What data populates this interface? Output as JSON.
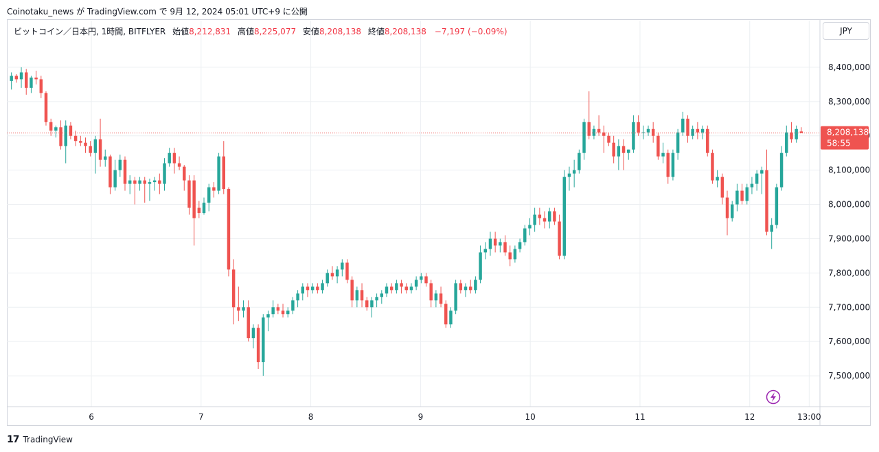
{
  "header": {
    "caption": "Coinotaku_news が TradingView.com で 9月 12, 2024 05:01 UTC+9 に公開"
  },
  "legend": {
    "symbol": "ビットコイン／日本円, 1時間, BITFLYER",
    "open_label": "始値",
    "open": "8,212,831",
    "high_label": "高値",
    "high": "8,225,077",
    "low_label": "安値",
    "low": "8,208,138",
    "close_label": "終値",
    "close": "8,208,138",
    "change": "−7,197 (−0.09%)"
  },
  "currency": "JPY",
  "price_tag": {
    "price": "8,208,138",
    "countdown": "58:55"
  },
  "footer": {
    "brand": "TradingView",
    "logo": "17"
  },
  "colors": {
    "up": "#26a69a",
    "down": "#ef5350",
    "grid": "#eceff2",
    "price_line": "#ef5350"
  },
  "icons": {
    "flash": "lightning-bolt-icon"
  },
  "chart_data": {
    "type": "candlestick",
    "title": "ビットコイン／日本円, 1時間, BITFLYER",
    "ylim": [
      7410000,
      8480000
    ],
    "xlim": [
      5.23,
      12.64
    ],
    "x_unit": "day of September 2024 (fractional, 1h candles)",
    "y_ticks": [
      7500000,
      7600000,
      7700000,
      7800000,
      7900000,
      8000000,
      8100000,
      8200000,
      8300000,
      8400000
    ],
    "y_tick_labels": [
      "7,500,000",
      "7,600,000",
      "7,700,000",
      "7,800,000",
      "7,900,000",
      "8,000,000",
      "8,100,000",
      "8,200,000",
      "8,300,000",
      "8,400,000"
    ],
    "x_ticks": [
      6,
      7,
      8,
      9,
      10,
      11,
      12,
      12.542
    ],
    "x_tick_labels": [
      "6",
      "7",
      "8",
      "9",
      "10",
      "11",
      "12",
      "13:00"
    ],
    "last_price": 8208138,
    "ohlc": [
      [
        8360000,
        8385000,
        8335000,
        8375000
      ],
      [
        8375000,
        8380000,
        8355000,
        8365000
      ],
      [
        8365000,
        8400000,
        8340000,
        8385000
      ],
      [
        8385000,
        8395000,
        8320000,
        8340000
      ],
      [
        8340000,
        8375000,
        8325000,
        8370000
      ],
      [
        8370000,
        8390000,
        8350000,
        8365000
      ],
      [
        8365000,
        8375000,
        8310000,
        8325000
      ],
      [
        8325000,
        8330000,
        8230000,
        8240000
      ],
      [
        8240000,
        8250000,
        8200000,
        8215000
      ],
      [
        8215000,
        8230000,
        8195000,
        8225000
      ],
      [
        8225000,
        8245000,
        8160000,
        8170000
      ],
      [
        8170000,
        8245000,
        8120000,
        8230000
      ],
      [
        8230000,
        8240000,
        8190000,
        8200000
      ],
      [
        8200000,
        8215000,
        8170000,
        8185000
      ],
      [
        8185000,
        8200000,
        8170000,
        8180000
      ],
      [
        8180000,
        8195000,
        8150000,
        8170000
      ],
      [
        8170000,
        8185000,
        8140000,
        8150000
      ],
      [
        8150000,
        8200000,
        8090000,
        8190000
      ],
      [
        8190000,
        8250000,
        8110000,
        8130000
      ],
      [
        8130000,
        8160000,
        8110000,
        8140000
      ],
      [
        8140000,
        8145000,
        8030000,
        8050000
      ],
      [
        8050000,
        8130000,
        8040000,
        8100000
      ],
      [
        8100000,
        8145000,
        8080000,
        8130000
      ],
      [
        8130000,
        8140000,
        8040000,
        8060000
      ],
      [
        8060000,
        8085000,
        8030000,
        8070000
      ],
      [
        8070000,
        8080000,
        8000000,
        8060000
      ],
      [
        8060000,
        8080000,
        8040000,
        8070000
      ],
      [
        8070000,
        8080000,
        8005000,
        8060000
      ],
      [
        8060000,
        8075000,
        8010000,
        8065000
      ],
      [
        8065000,
        8080000,
        8040000,
        8070000
      ],
      [
        8070000,
        8090000,
        8030000,
        8060000
      ],
      [
        8060000,
        8135000,
        8040000,
        8120000
      ],
      [
        8120000,
        8165000,
        8110000,
        8150000
      ],
      [
        8150000,
        8165000,
        8090000,
        8120000
      ],
      [
        8120000,
        8140000,
        8100000,
        8110000
      ],
      [
        8110000,
        8115000,
        8040000,
        8070000
      ],
      [
        8070000,
        8085000,
        7970000,
        7990000
      ],
      [
        8070000,
        8085000,
        7880000,
        7960000
      ],
      [
        7990000,
        8010000,
        7960000,
        7975000
      ],
      [
        7975000,
        8020000,
        7970000,
        8005000
      ],
      [
        8005000,
        8060000,
        7980000,
        8050000
      ],
      [
        8050000,
        8065000,
        8020000,
        8040000
      ],
      [
        8040000,
        8150000,
        8030000,
        8140000
      ],
      [
        8140000,
        8185000,
        8030000,
        8045000
      ],
      [
        8045000,
        8050000,
        7790000,
        7810000
      ],
      [
        7810000,
        7840000,
        7650000,
        7700000
      ],
      [
        7700000,
        7760000,
        7660000,
        7690000
      ],
      [
        7690000,
        7720000,
        7670000,
        7700000
      ],
      [
        7700000,
        7720000,
        7600000,
        7610000
      ],
      [
        7610000,
        7650000,
        7580000,
        7640000
      ],
      [
        7640000,
        7650000,
        7520000,
        7540000
      ],
      [
        7540000,
        7680000,
        7500000,
        7670000
      ],
      [
        7670000,
        7690000,
        7630000,
        7680000
      ],
      [
        7680000,
        7720000,
        7670000,
        7700000
      ],
      [
        7700000,
        7710000,
        7680000,
        7690000
      ],
      [
        7690000,
        7710000,
        7670000,
        7680000
      ],
      [
        7680000,
        7700000,
        7670000,
        7690000
      ],
      [
        7690000,
        7730000,
        7680000,
        7720000
      ],
      [
        7720000,
        7750000,
        7700000,
        7740000
      ],
      [
        7740000,
        7770000,
        7720000,
        7760000
      ],
      [
        7760000,
        7770000,
        7730000,
        7750000
      ],
      [
        7750000,
        7770000,
        7740000,
        7760000
      ],
      [
        7760000,
        7770000,
        7740000,
        7750000
      ],
      [
        7750000,
        7780000,
        7740000,
        7770000
      ],
      [
        7770000,
        7810000,
        7760000,
        7800000
      ],
      [
        7800000,
        7820000,
        7780000,
        7790000
      ],
      [
        7790000,
        7820000,
        7770000,
        7810000
      ],
      [
        7810000,
        7840000,
        7790000,
        7830000
      ],
      [
        7830000,
        7840000,
        7770000,
        7780000
      ],
      [
        7780000,
        7790000,
        7700000,
        7720000
      ],
      [
        7720000,
        7760000,
        7700000,
        7750000
      ],
      [
        7750000,
        7770000,
        7700000,
        7720000
      ],
      [
        7720000,
        7730000,
        7690000,
        7700000
      ],
      [
        7700000,
        7730000,
        7670000,
        7720000
      ],
      [
        7720000,
        7740000,
        7700000,
        7730000
      ],
      [
        7730000,
        7750000,
        7710000,
        7740000
      ],
      [
        7740000,
        7770000,
        7730000,
        7760000
      ],
      [
        7760000,
        7770000,
        7740000,
        7750000
      ],
      [
        7750000,
        7780000,
        7740000,
        7770000
      ],
      [
        7770000,
        7780000,
        7740000,
        7760000
      ],
      [
        7760000,
        7770000,
        7740000,
        7750000
      ],
      [
        7750000,
        7770000,
        7740000,
        7760000
      ],
      [
        7760000,
        7790000,
        7750000,
        7780000
      ],
      [
        7780000,
        7800000,
        7770000,
        7790000
      ],
      [
        7790000,
        7800000,
        7760000,
        7770000
      ],
      [
        7770000,
        7780000,
        7700000,
        7720000
      ],
      [
        7720000,
        7750000,
        7700000,
        7740000
      ],
      [
        7740000,
        7760000,
        7700000,
        7710000
      ],
      [
        7710000,
        7720000,
        7640000,
        7650000
      ],
      [
        7650000,
        7700000,
        7640000,
        7690000
      ],
      [
        7690000,
        7780000,
        7680000,
        7770000
      ],
      [
        7770000,
        7780000,
        7740000,
        7750000
      ],
      [
        7750000,
        7770000,
        7730000,
        7760000
      ],
      [
        7760000,
        7780000,
        7740000,
        7750000
      ],
      [
        7750000,
        7790000,
        7740000,
        7780000
      ],
      [
        7780000,
        7880000,
        7770000,
        7860000
      ],
      [
        7860000,
        7890000,
        7840000,
        7870000
      ],
      [
        7870000,
        7920000,
        7850000,
        7900000
      ],
      [
        7900000,
        7920000,
        7860000,
        7880000
      ],
      [
        7880000,
        7900000,
        7860000,
        7890000
      ],
      [
        7890000,
        7910000,
        7850000,
        7860000
      ],
      [
        7860000,
        7880000,
        7820000,
        7840000
      ],
      [
        7840000,
        7880000,
        7830000,
        7870000
      ],
      [
        7870000,
        7900000,
        7860000,
        7890000
      ],
      [
        7890000,
        7940000,
        7880000,
        7930000
      ],
      [
        7930000,
        7960000,
        7910000,
        7940000
      ],
      [
        7940000,
        7990000,
        7920000,
        7970000
      ],
      [
        7970000,
        7990000,
        7940000,
        7960000
      ],
      [
        7960000,
        7980000,
        7930000,
        7950000
      ],
      [
        7950000,
        7990000,
        7930000,
        7980000
      ],
      [
        7980000,
        7990000,
        7940000,
        7950000
      ],
      [
        7950000,
        7970000,
        7840000,
        7850000
      ],
      [
        7850000,
        8100000,
        7840000,
        8080000
      ],
      [
        8080000,
        8110000,
        8040000,
        8090000
      ],
      [
        8090000,
        8130000,
        8050000,
        8100000
      ],
      [
        8100000,
        8160000,
        8090000,
        8150000
      ],
      [
        8150000,
        8250000,
        8130000,
        8240000
      ],
      [
        8240000,
        8330000,
        8190000,
        8200000
      ],
      [
        8200000,
        8230000,
        8190000,
        8220000
      ],
      [
        8220000,
        8260000,
        8200000,
        8210000
      ],
      [
        8210000,
        8230000,
        8150000,
        8200000
      ],
      [
        8200000,
        8210000,
        8170000,
        8180000
      ],
      [
        8180000,
        8200000,
        8120000,
        8140000
      ],
      [
        8140000,
        8190000,
        8100000,
        8170000
      ],
      [
        8170000,
        8190000,
        8100000,
        8150000
      ],
      [
        8150000,
        8160000,
        8130000,
        8160000
      ],
      [
        8160000,
        8260000,
        8150000,
        8240000
      ],
      [
        8240000,
        8260000,
        8200000,
        8210000
      ],
      [
        8210000,
        8230000,
        8190000,
        8210000
      ],
      [
        8210000,
        8230000,
        8200000,
        8220000
      ],
      [
        8220000,
        8240000,
        8180000,
        8200000
      ],
      [
        8200000,
        8210000,
        8130000,
        8140000
      ],
      [
        8140000,
        8180000,
        8120000,
        8150000
      ],
      [
        8150000,
        8160000,
        8060000,
        8080000
      ],
      [
        8080000,
        8160000,
        8070000,
        8150000
      ],
      [
        8150000,
        8220000,
        8130000,
        8210000
      ],
      [
        8210000,
        8270000,
        8200000,
        8250000
      ],
      [
        8250000,
        8260000,
        8180000,
        8200000
      ],
      [
        8200000,
        8230000,
        8190000,
        8220000
      ],
      [
        8220000,
        8240000,
        8190000,
        8210000
      ],
      [
        8210000,
        8230000,
        8190000,
        8220000
      ],
      [
        8220000,
        8230000,
        8140000,
        8150000
      ],
      [
        8150000,
        8160000,
        8060000,
        8070000
      ],
      [
        8070000,
        8100000,
        8050000,
        8080000
      ],
      [
        8080000,
        8090000,
        8000000,
        8020000
      ],
      [
        8020000,
        8040000,
        7910000,
        7960000
      ],
      [
        7960000,
        8010000,
        7950000,
        8000000
      ],
      [
        8000000,
        8060000,
        7980000,
        8040000
      ],
      [
        8040000,
        8060000,
        8000000,
        8010000
      ],
      [
        8010000,
        8060000,
        8000000,
        8050000
      ],
      [
        8050000,
        8080000,
        8030000,
        8060000
      ],
      [
        8060000,
        8100000,
        8040000,
        8090000
      ],
      [
        8090000,
        8110000,
        8030000,
        8100000
      ],
      [
        8100000,
        8160000,
        7910000,
        7920000
      ],
      [
        7920000,
        7960000,
        7870000,
        7940000
      ],
      [
        7940000,
        8060000,
        7930000,
        8050000
      ],
      [
        8050000,
        8170000,
        8040000,
        8150000
      ],
      [
        8150000,
        8230000,
        8140000,
        8210000
      ],
      [
        8210000,
        8240000,
        8180000,
        8190000
      ],
      [
        8190000,
        8230000,
        8180000,
        8220000
      ],
      [
        8212831,
        8225077,
        8208138,
        8208138
      ]
    ]
  }
}
